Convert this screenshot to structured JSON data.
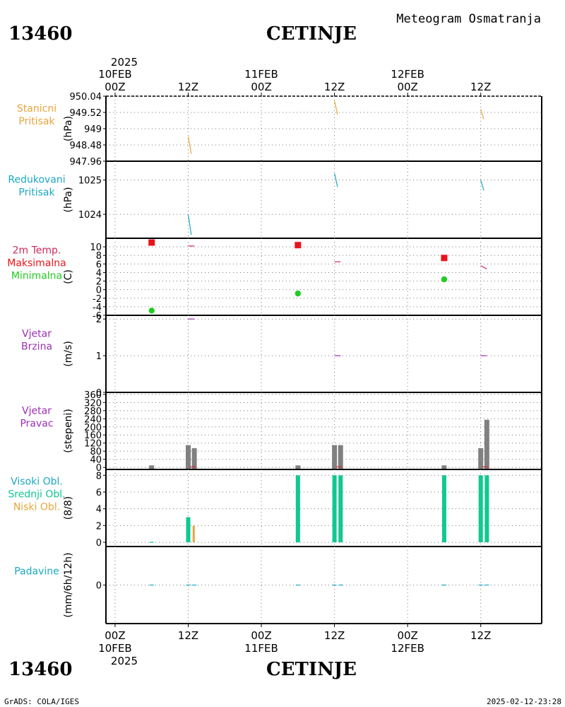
{
  "header": {
    "station_id": "13460",
    "station_name": "CETINJE",
    "product": "Meteogram Osmatranja"
  },
  "footer": {
    "credit": "GrADS: COLA/IGES",
    "timestamp": "2025-02-12-23:28"
  },
  "time_axis": {
    "year": "2025",
    "date_labels": [
      "10FEB",
      "11FEB",
      "12FEB"
    ],
    "ticks": [
      {
        "h": 0,
        "label": "00Z"
      },
      {
        "h": 12,
        "label": "12Z"
      },
      {
        "h": 24,
        "label": "00Z"
      },
      {
        "h": 36,
        "label": "12Z"
      },
      {
        "h": 48,
        "label": "00Z"
      },
      {
        "h": 60,
        "label": "12Z"
      }
    ],
    "xlim_hours": [
      -1.5,
      70
    ]
  },
  "colors": {
    "station_pressure": "#e8a53c",
    "reduced_pressure": "#1aa7c4",
    "temp_label": "#d0285a",
    "max_temp": "#e8141a",
    "min_temp": "#22cc22",
    "wind": "#9a2fb3",
    "dir_bar": "#808080",
    "cloud_high": "#1aa7c4",
    "cloud_mid": "#10c890",
    "cloud_low": "#e8a53c",
    "precip": "#1aa7c4"
  },
  "chart_data": [
    {
      "id": "station_pressure",
      "type": "line",
      "labels": [
        "Stanicni",
        "Pritisak"
      ],
      "unit": "(hPa)",
      "ylim": [
        947.96,
        950.04
      ],
      "ticks": [
        "950.04",
        "949.52",
        "949",
        "948.48",
        "947.96"
      ],
      "segments": [
        {
          "x": [
            12,
            12.5
          ],
          "y": [
            948.75,
            948.2
          ]
        },
        {
          "x": [
            36,
            36.5
          ],
          "y": [
            949.9,
            949.45
          ]
        },
        {
          "x": [
            60,
            60.5
          ],
          "y": [
            949.62,
            949.3
          ]
        }
      ]
    },
    {
      "id": "reduced_pressure",
      "type": "line",
      "labels": [
        "Redukovani",
        "Pritisak"
      ],
      "unit": "(hPa)",
      "ylim": [
        1023.3,
        1025.55
      ],
      "ticks": [
        "1025",
        "1024"
      ],
      "segments": [
        {
          "x": [
            12,
            12.5
          ],
          "y": [
            1024.0,
            1023.4
          ]
        },
        {
          "x": [
            36,
            36.5
          ],
          "y": [
            1025.2,
            1024.8
          ]
        },
        {
          "x": [
            60,
            60.5
          ],
          "y": [
            1025.0,
            1024.7
          ]
        }
      ]
    },
    {
      "id": "temperature",
      "type": "scatter",
      "labels": [
        "2m Temp.",
        "Maksimalna",
        "Minimalna"
      ],
      "unit": "(C)",
      "ylim": [
        -6,
        12
      ],
      "ticks": [
        "10",
        "8",
        "6",
        "4",
        "2",
        "0",
        "-2",
        "-4",
        "-6"
      ],
      "max_points": [
        {
          "x": 6,
          "y": 11.0
        },
        {
          "x": 30,
          "y": 10.4
        },
        {
          "x": 54,
          "y": 7.4
        }
      ],
      "min_points": [
        {
          "x": 6,
          "y": -4.9
        },
        {
          "x": 30,
          "y": -0.9
        },
        {
          "x": 54,
          "y": 2.4
        }
      ],
      "temp_segments": [
        {
          "x": [
            12,
            13
          ],
          "y": [
            10.2,
            10.2
          ]
        },
        {
          "x": [
            36,
            37
          ],
          "y": [
            6.5,
            6.5
          ]
        },
        {
          "x": [
            60,
            61
          ],
          "y": [
            5.6,
            4.8
          ]
        }
      ]
    },
    {
      "id": "wind_speed",
      "type": "line",
      "labels": [
        "Vjetar",
        "Brzina"
      ],
      "unit": "(m/s)",
      "ylim": [
        0,
        2.1
      ],
      "ticks": [
        "2",
        "1",
        "0"
      ],
      "segments": [
        {
          "x": [
            12,
            13
          ],
          "y": [
            2.0,
            2.0
          ]
        },
        {
          "x": [
            36,
            37
          ],
          "y": [
            1.0,
            1.0
          ]
        },
        {
          "x": [
            60,
            61
          ],
          "y": [
            1.0,
            1.0
          ]
        }
      ]
    },
    {
      "id": "wind_direction",
      "type": "bar",
      "labels": [
        "Vjetar",
        "Pravac"
      ],
      "unit": "(stepeni)",
      "ylim": [
        -10,
        370
      ],
      "ticks": [
        "360",
        "320",
        "280",
        "240",
        "200",
        "160",
        "120",
        "80",
        "40",
        "0"
      ],
      "bars": [
        {
          "x": 6,
          "value": 10
        },
        {
          "x": 12,
          "value": 110
        },
        {
          "x": 13,
          "value": 95
        },
        {
          "x": 30,
          "value": 10
        },
        {
          "x": 36,
          "value": 110
        },
        {
          "x": 37,
          "value": 110
        },
        {
          "x": 54,
          "value": 10
        },
        {
          "x": 60,
          "value": 95
        },
        {
          "x": 61,
          "value": 235
        }
      ]
    },
    {
      "id": "clouds",
      "type": "bar",
      "labels": [
        "Visoki Obl.",
        "Srednji Obl.",
        "Niski Obl."
      ],
      "unit": "(8/8)",
      "ylim": [
        -0.5,
        8.7
      ],
      "ticks": [
        "8",
        "6",
        "4",
        "2",
        "0"
      ],
      "mid": [
        {
          "x": 12,
          "value": 3
        },
        {
          "x": 30,
          "value": 8
        },
        {
          "x": 36,
          "value": 8
        },
        {
          "x": 37,
          "value": 8
        },
        {
          "x": 54,
          "value": 8
        },
        {
          "x": 60,
          "value": 8
        },
        {
          "x": 61,
          "value": 8
        }
      ],
      "low": [
        {
          "x": 12.9,
          "value": 2
        }
      ],
      "high_trace": [
        {
          "x": 6,
          "value": 0
        }
      ]
    },
    {
      "id": "precipitation",
      "type": "bar",
      "labels": [
        "Padavine"
      ],
      "unit": "(mm/6h/12h)",
      "ylim": [
        -5,
        5
      ],
      "ticks": [
        "0"
      ],
      "traces": [
        {
          "x": 6,
          "value": 0
        },
        {
          "x": 12,
          "value": 0
        },
        {
          "x": 13,
          "value": 0
        },
        {
          "x": 30,
          "value": 0
        },
        {
          "x": 36,
          "value": 0
        },
        {
          "x": 37,
          "value": 0
        },
        {
          "x": 54,
          "value": 0
        },
        {
          "x": 60,
          "value": 0
        },
        {
          "x": 61,
          "value": 0
        }
      ]
    }
  ]
}
